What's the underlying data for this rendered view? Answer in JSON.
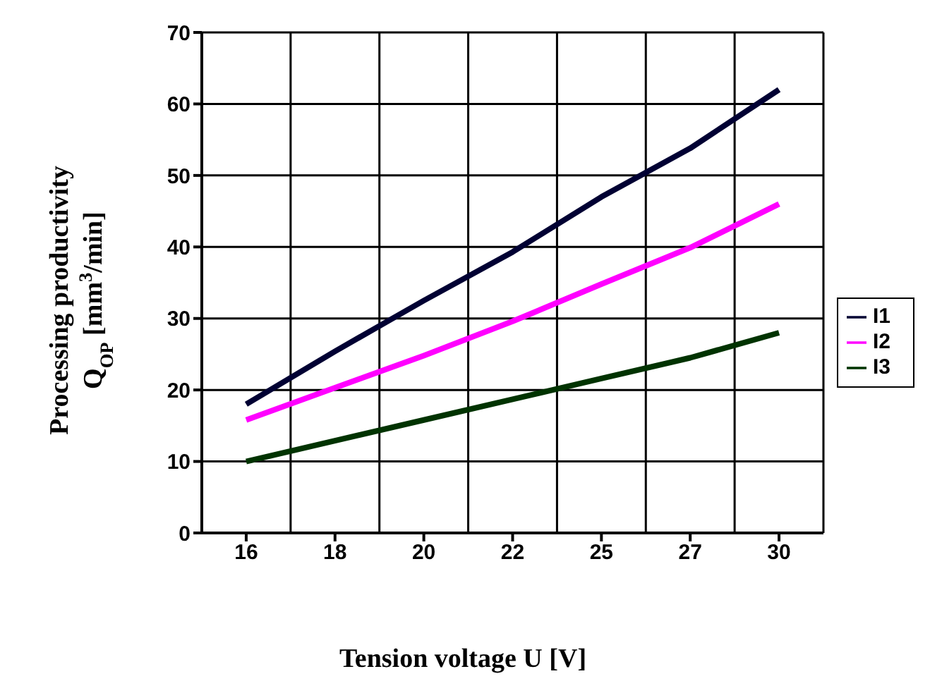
{
  "chart_data": {
    "type": "line",
    "xlabel": "Tension voltage U [V]",
    "ylabel": "Processing productivity\nQ$_{OP}$ [mm$^{3}$/min]",
    "categories": [
      "16",
      "18",
      "20",
      "22",
      "25",
      "27",
      "30"
    ],
    "series": [
      {
        "name": "I1",
        "color": "#000033",
        "values": [
          18,
          25.4,
          32.5,
          39.3,
          47,
          53.8,
          62
        ]
      },
      {
        "name": "I2",
        "color": "#ff00ff",
        "values": [
          15.8,
          20.3,
          24.8,
          29.6,
          34.8,
          39.9,
          46
        ]
      },
      {
        "name": "I3",
        "color": "#003300",
        "values": [
          10,
          12.9,
          15.8,
          18.7,
          21.6,
          24.5,
          28
        ]
      }
    ],
    "ylim": [
      0,
      70
    ],
    "yticks": [
      0,
      10,
      20,
      30,
      40,
      50,
      60,
      70
    ],
    "grid": true,
    "legend": "right",
    "marker": "none",
    "line_style": "solid"
  }
}
